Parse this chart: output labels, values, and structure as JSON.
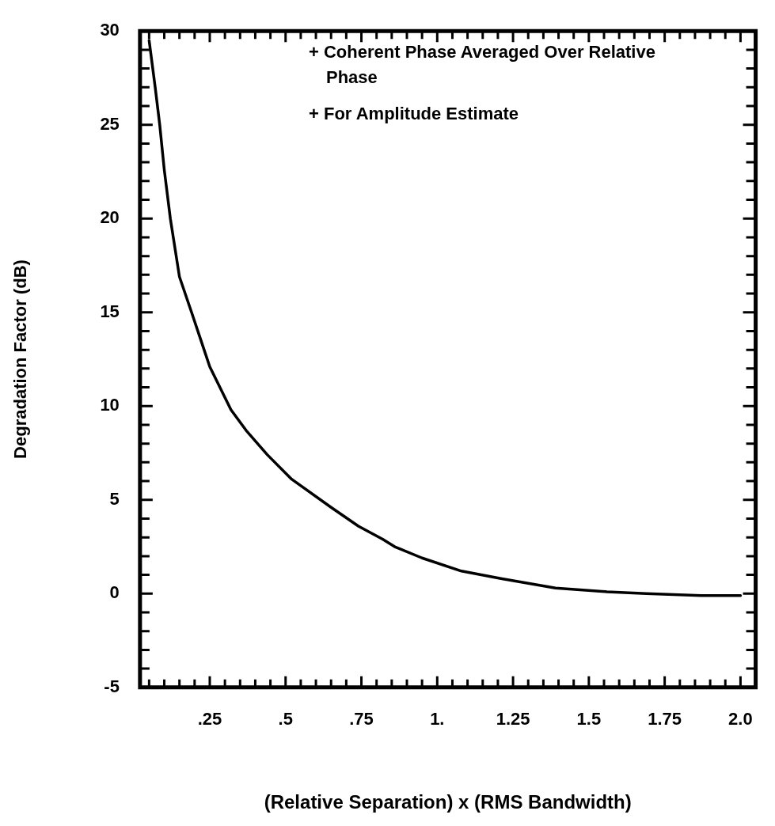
{
  "chart_data": {
    "type": "line",
    "xlabel": "(Relative Separation) x (RMS Bandwidth)",
    "ylabel": "Degradation Factor (dB)",
    "annotations": [
      "+ Coherent Phase Averaged Over Relative Phase",
      "+ For Amplitude Estimate"
    ],
    "series": [
      {
        "color": "#000000",
        "x": [
          0.05,
          0.07,
          0.085,
          0.1,
          0.12,
          0.15,
          0.19,
          0.25,
          0.32,
          0.37,
          0.44,
          0.52,
          0.65,
          0.74,
          0.82,
          0.86,
          0.95,
          1.08,
          1.21,
          1.39,
          1.56,
          1.69,
          1.87,
          2.0
        ],
        "values": [
          29.5,
          27,
          25,
          22.6,
          20,
          16.9,
          15,
          12.1,
          9.8,
          8.7,
          7.4,
          6.1,
          4.6,
          3.6,
          2.9,
          2.5,
          1.9,
          1.2,
          0.8,
          0.3,
          0.1,
          0.0,
          -0.1,
          -0.1
        ]
      }
    ],
    "xlim": [
      0.02,
      2.05
    ],
    "ylim": [
      -5,
      30
    ],
    "xticks": [
      {
        "value": 0.05,
        "label": null
      },
      {
        "value": 0.1,
        "label": null
      },
      {
        "value": 0.15,
        "label": null
      },
      {
        "value": 0.2,
        "label": null
      },
      {
        "value": 0.25,
        "label": ".25"
      },
      {
        "value": 0.3,
        "label": null
      },
      {
        "value": 0.35,
        "label": null
      },
      {
        "value": 0.4,
        "label": null
      },
      {
        "value": 0.45,
        "label": null
      },
      {
        "value": 0.5,
        "label": ".5"
      },
      {
        "value": 0.55,
        "label": null
      },
      {
        "value": 0.6,
        "label": null
      },
      {
        "value": 0.65,
        "label": null
      },
      {
        "value": 0.7,
        "label": null
      },
      {
        "value": 0.75,
        "label": ".75"
      },
      {
        "value": 0.8,
        "label": null
      },
      {
        "value": 0.85,
        "label": null
      },
      {
        "value": 0.9,
        "label": null
      },
      {
        "value": 0.95,
        "label": null
      },
      {
        "value": 1,
        "label": "1."
      },
      {
        "value": 1.05,
        "label": null
      },
      {
        "value": 1.1,
        "label": null
      },
      {
        "value": 1.15,
        "label": null
      },
      {
        "value": 1.2,
        "label": null
      },
      {
        "value": 1.25,
        "label": "1.25"
      },
      {
        "value": 1.3,
        "label": null
      },
      {
        "value": 1.35,
        "label": null
      },
      {
        "value": 1.4,
        "label": null
      },
      {
        "value": 1.45,
        "label": null
      },
      {
        "value": 1.5,
        "label": "1.5"
      },
      {
        "value": 1.55,
        "label": null
      },
      {
        "value": 1.6,
        "label": null
      },
      {
        "value": 1.65,
        "label": null
      },
      {
        "value": 1.7,
        "label": null
      },
      {
        "value": 1.75,
        "label": "1.75"
      },
      {
        "value": 1.8,
        "label": null
      },
      {
        "value": 1.85,
        "label": null
      },
      {
        "value": 1.9,
        "label": null
      },
      {
        "value": 1.95,
        "label": null
      },
      {
        "value": 2,
        "label": "2.0"
      }
    ],
    "yticks": [
      -5,
      {
        "value": -4,
        "label": null
      },
      {
        "value": -3,
        "label": null
      },
      {
        "value": -2,
        "label": null
      },
      {
        "value": -1,
        "label": null
      },
      0,
      {
        "value": 1,
        "label": null
      },
      {
        "value": 2,
        "label": null
      },
      {
        "value": 3,
        "label": null
      },
      {
        "value": 4,
        "label": null
      },
      5,
      {
        "value": 6,
        "label": null
      },
      {
        "value": 7,
        "label": null
      },
      {
        "value": 8,
        "label": null
      },
      {
        "value": 9,
        "label": null
      },
      10,
      {
        "value": 11,
        "label": null
      },
      {
        "value": 12,
        "label": null
      },
      {
        "value": 13,
        "label": null
      },
      {
        "value": 14,
        "label": null
      },
      15,
      {
        "value": 16,
        "label": null
      },
      {
        "value": 17,
        "label": null
      },
      {
        "value": 18,
        "label": null
      },
      {
        "value": 19,
        "label": null
      },
      20,
      {
        "value": 21,
        "label": null
      },
      {
        "value": 22,
        "label": null
      },
      {
        "value": 23,
        "label": null
      },
      {
        "value": 24,
        "label": null
      },
      25,
      {
        "value": 26,
        "label": null
      },
      {
        "value": 27,
        "label": null
      },
      {
        "value": 28,
        "label": null
      },
      {
        "value": 29,
        "label": null
      },
      30
    ],
    "marker": "none",
    "line_style": "solid",
    "legend": false
  }
}
